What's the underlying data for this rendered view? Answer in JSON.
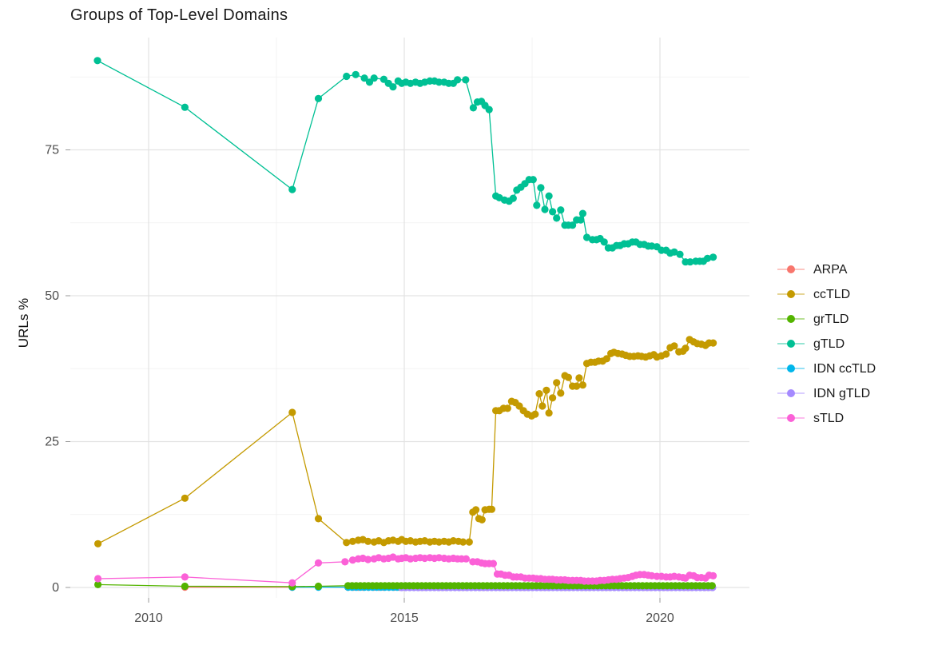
{
  "chart_data": {
    "type": "line",
    "title": "Groups of Top-Level Domains",
    "xlabel": "",
    "ylabel": "URLs %",
    "xlim": [
      2008.5,
      2021.7
    ],
    "ylim": [
      -1,
      94
    ],
    "x_ticks": [
      2010,
      2015,
      2020
    ],
    "x_minor": [
      2012.5,
      2017.5
    ],
    "y_ticks": [
      0,
      25,
      50,
      75
    ],
    "y_minor": [
      12.5,
      37.5,
      62.5,
      87.5
    ],
    "grid": true,
    "legend_position": "right",
    "legend": [
      {
        "label": "ARPA",
        "color": "#F8766D"
      },
      {
        "label": "ccTLD",
        "color": "#C49A00"
      },
      {
        "label": "grTLD",
        "color": "#53B400"
      },
      {
        "label": "gTLD",
        "color": "#00C094"
      },
      {
        "label": "IDN ccTLD",
        "color": "#00B6EB"
      },
      {
        "label": "IDN gTLD",
        "color": "#A58AFF"
      },
      {
        "label": "sTLD",
        "color": "#FB61D7"
      }
    ],
    "series": [
      {
        "name": "ARPA",
        "color": "#F8766D",
        "points": [
          [
            2010.71,
            0.05
          ],
          [
            2012.81,
            0.05
          ],
          [
            2013.32,
            0.1
          ]
        ],
        "flat": {
          "from": 2013.9,
          "to": 2021.05,
          "step": 0.1,
          "value": 0.05
        }
      },
      {
        "name": "IDN ccTLD",
        "color": "#00B6EB",
        "points": [
          [
            2012.81,
            0.05
          ],
          [
            2013.32,
            0.05
          ]
        ],
        "flat": {
          "from": 2013.9,
          "to": 2021.05,
          "step": 0.08,
          "value": 0.05
        }
      },
      {
        "name": "IDN gTLD",
        "color": "#A58AFF",
        "points": [],
        "flat": {
          "from": 2014.95,
          "to": 2021.05,
          "step": 0.08,
          "value": 0.0
        }
      },
      {
        "name": "grTLD",
        "color": "#53B400",
        "points": [
          [
            2009.01,
            0.5
          ],
          [
            2010.71,
            0.2
          ],
          [
            2012.81,
            0.15
          ],
          [
            2013.32,
            0.2
          ]
        ],
        "flat": {
          "from": 2013.9,
          "to": 2021.05,
          "step": 0.08,
          "value": 0.3
        }
      },
      {
        "name": "gTLD",
        "color": "#00C094",
        "points": [
          [
            2009.0,
            90.3
          ],
          [
            2010.71,
            82.3
          ],
          [
            2012.81,
            68.2
          ],
          [
            2013.32,
            83.8
          ],
          [
            2013.87,
            87.6
          ],
          [
            2014.05,
            87.9
          ],
          [
            2014.22,
            87.3
          ],
          [
            2014.32,
            86.6
          ],
          [
            2014.41,
            87.3
          ],
          [
            2014.6,
            87.1
          ],
          [
            2014.69,
            86.4
          ],
          [
            2014.78,
            85.8
          ],
          [
            2014.88,
            86.8
          ],
          [
            2014.95,
            86.4
          ],
          [
            2015.03,
            86.6
          ],
          [
            2015.12,
            86.4
          ],
          [
            2015.22,
            86.6
          ],
          [
            2015.31,
            86.4
          ],
          [
            2015.4,
            86.6
          ],
          [
            2015.5,
            86.8
          ],
          [
            2015.59,
            86.8
          ],
          [
            2015.68,
            86.6
          ],
          [
            2015.78,
            86.6
          ],
          [
            2015.87,
            86.4
          ],
          [
            2015.96,
            86.4
          ],
          [
            2016.04,
            87.0
          ],
          [
            2016.2,
            87.0
          ],
          [
            2016.35,
            82.2
          ],
          [
            2016.43,
            83.2
          ],
          [
            2016.51,
            83.3
          ],
          [
            2016.58,
            82.6
          ],
          [
            2016.66,
            81.9
          ],
          [
            2016.79,
            67.1
          ],
          [
            2016.86,
            66.8
          ],
          [
            2016.96,
            66.4
          ],
          [
            2017.05,
            66.2
          ],
          [
            2017.13,
            66.7
          ],
          [
            2017.2,
            68.1
          ],
          [
            2017.28,
            68.6
          ],
          [
            2017.36,
            69.2
          ],
          [
            2017.44,
            69.9
          ],
          [
            2017.52,
            69.9
          ],
          [
            2017.59,
            65.5
          ],
          [
            2017.67,
            68.5
          ],
          [
            2017.75,
            64.8
          ],
          [
            2017.83,
            67.1
          ],
          [
            2017.9,
            64.4
          ],
          [
            2017.98,
            63.3
          ],
          [
            2018.06,
            64.7
          ],
          [
            2018.14,
            62.1
          ],
          [
            2018.21,
            62.1
          ],
          [
            2018.29,
            62.1
          ],
          [
            2018.37,
            63.0
          ],
          [
            2018.45,
            63.0
          ],
          [
            2018.49,
            64.1
          ],
          [
            2018.57,
            60.0
          ],
          [
            2018.68,
            59.6
          ],
          [
            2018.76,
            59.6
          ],
          [
            2018.83,
            59.8
          ],
          [
            2018.91,
            59.2
          ],
          [
            2018.99,
            58.2
          ],
          [
            2019.07,
            58.2
          ],
          [
            2019.15,
            58.6
          ],
          [
            2019.22,
            58.6
          ],
          [
            2019.3,
            58.9
          ],
          [
            2019.38,
            58.9
          ],
          [
            2019.46,
            59.2
          ],
          [
            2019.53,
            59.2
          ],
          [
            2019.61,
            58.8
          ],
          [
            2019.69,
            58.8
          ],
          [
            2019.77,
            58.5
          ],
          [
            2019.84,
            58.5
          ],
          [
            2019.94,
            58.4
          ],
          [
            2020.03,
            57.8
          ],
          [
            2020.12,
            57.8
          ],
          [
            2020.2,
            57.3
          ],
          [
            2020.28,
            57.5
          ],
          [
            2020.39,
            57.1
          ],
          [
            2020.5,
            55.8
          ],
          [
            2020.59,
            55.8
          ],
          [
            2020.7,
            55.9
          ],
          [
            2020.78,
            55.9
          ],
          [
            2020.85,
            55.9
          ],
          [
            2020.93,
            56.4
          ],
          [
            2021.04,
            56.6
          ]
        ]
      },
      {
        "name": "ccTLD",
        "color": "#C49A00",
        "points": [
          [
            2009.01,
            7.5
          ],
          [
            2010.71,
            15.3
          ],
          [
            2012.81,
            30.0
          ],
          [
            2013.32,
            11.8
          ],
          [
            2013.87,
            7.7
          ],
          [
            2013.99,
            7.9
          ],
          [
            2014.1,
            8.1
          ],
          [
            2014.19,
            8.2
          ],
          [
            2014.29,
            7.9
          ],
          [
            2014.41,
            7.8
          ],
          [
            2014.5,
            8.0
          ],
          [
            2014.6,
            7.7
          ],
          [
            2014.69,
            8.0
          ],
          [
            2014.78,
            8.1
          ],
          [
            2014.88,
            7.9
          ],
          [
            2014.95,
            8.2
          ],
          [
            2015.03,
            7.9
          ],
          [
            2015.12,
            8.0
          ],
          [
            2015.22,
            7.8
          ],
          [
            2015.31,
            7.9
          ],
          [
            2015.4,
            8.0
          ],
          [
            2015.5,
            7.8
          ],
          [
            2015.59,
            7.9
          ],
          [
            2015.68,
            7.8
          ],
          [
            2015.78,
            7.9
          ],
          [
            2015.87,
            7.8
          ],
          [
            2015.96,
            8.0
          ],
          [
            2016.06,
            7.9
          ],
          [
            2016.15,
            7.8
          ],
          [
            2016.27,
            7.8
          ],
          [
            2016.34,
            12.9
          ],
          [
            2016.4,
            13.3
          ],
          [
            2016.46,
            11.8
          ],
          [
            2016.52,
            11.6
          ],
          [
            2016.58,
            13.3
          ],
          [
            2016.66,
            13.4
          ],
          [
            2016.71,
            13.4
          ],
          [
            2016.79,
            30.3
          ],
          [
            2016.86,
            30.3
          ],
          [
            2016.94,
            30.7
          ],
          [
            2017.02,
            30.7
          ],
          [
            2017.1,
            31.9
          ],
          [
            2017.17,
            31.7
          ],
          [
            2017.25,
            31.1
          ],
          [
            2017.33,
            30.3
          ],
          [
            2017.41,
            29.7
          ],
          [
            2017.49,
            29.4
          ],
          [
            2017.56,
            29.7
          ],
          [
            2017.64,
            33.2
          ],
          [
            2017.7,
            31.1
          ],
          [
            2017.78,
            33.8
          ],
          [
            2017.83,
            29.9
          ],
          [
            2017.9,
            32.5
          ],
          [
            2017.98,
            35.1
          ],
          [
            2018.06,
            33.3
          ],
          [
            2018.14,
            36.3
          ],
          [
            2018.21,
            36.0
          ],
          [
            2018.29,
            34.5
          ],
          [
            2018.37,
            34.5
          ],
          [
            2018.42,
            35.9
          ],
          [
            2018.49,
            34.7
          ],
          [
            2018.57,
            38.4
          ],
          [
            2018.65,
            38.6
          ],
          [
            2018.73,
            38.6
          ],
          [
            2018.8,
            38.8
          ],
          [
            2018.88,
            38.8
          ],
          [
            2018.96,
            39.2
          ],
          [
            2019.04,
            40.1
          ],
          [
            2019.1,
            40.3
          ],
          [
            2019.18,
            40.1
          ],
          [
            2019.26,
            40.0
          ],
          [
            2019.33,
            39.8
          ],
          [
            2019.41,
            39.6
          ],
          [
            2019.49,
            39.6
          ],
          [
            2019.57,
            39.7
          ],
          [
            2019.64,
            39.6
          ],
          [
            2019.72,
            39.5
          ],
          [
            2019.8,
            39.7
          ],
          [
            2019.88,
            39.9
          ],
          [
            2019.94,
            39.5
          ],
          [
            2020.03,
            39.7
          ],
          [
            2020.12,
            40.0
          ],
          [
            2020.2,
            41.1
          ],
          [
            2020.28,
            41.4
          ],
          [
            2020.37,
            40.4
          ],
          [
            2020.45,
            40.5
          ],
          [
            2020.5,
            41.0
          ],
          [
            2020.58,
            42.5
          ],
          [
            2020.66,
            42.1
          ],
          [
            2020.73,
            41.8
          ],
          [
            2020.81,
            41.7
          ],
          [
            2020.89,
            41.5
          ],
          [
            2020.96,
            41.9
          ],
          [
            2021.04,
            41.9
          ]
        ]
      },
      {
        "name": "sTLD",
        "color": "#FB61D7",
        "points": [
          [
            2009.01,
            1.5
          ],
          [
            2010.71,
            1.8
          ],
          [
            2012.81,
            0.8
          ],
          [
            2013.32,
            4.2
          ],
          [
            2013.84,
            4.4
          ],
          [
            2013.99,
            4.7
          ],
          [
            2014.1,
            4.9
          ],
          [
            2014.19,
            5.0
          ],
          [
            2014.29,
            4.8
          ],
          [
            2014.41,
            4.9
          ],
          [
            2014.5,
            5.1
          ],
          [
            2014.6,
            4.9
          ],
          [
            2014.69,
            5.0
          ],
          [
            2014.78,
            5.2
          ],
          [
            2014.88,
            4.9
          ],
          [
            2014.95,
            5.0
          ],
          [
            2015.03,
            5.1
          ],
          [
            2015.12,
            4.9
          ],
          [
            2015.22,
            5.0
          ],
          [
            2015.31,
            5.1
          ],
          [
            2015.4,
            5.0
          ],
          [
            2015.5,
            5.1
          ],
          [
            2015.59,
            5.0
          ],
          [
            2015.68,
            5.1
          ],
          [
            2015.78,
            5.0
          ],
          [
            2015.87,
            4.9
          ],
          [
            2015.96,
            5.0
          ],
          [
            2016.04,
            4.9
          ],
          [
            2016.12,
            4.9
          ],
          [
            2016.21,
            4.9
          ],
          [
            2016.34,
            4.4
          ],
          [
            2016.43,
            4.4
          ],
          [
            2016.51,
            4.2
          ],
          [
            2016.58,
            4.1
          ],
          [
            2016.66,
            4.1
          ],
          [
            2016.74,
            4.1
          ],
          [
            2016.82,
            2.3
          ],
          [
            2016.89,
            2.3
          ],
          [
            2016.97,
            2.1
          ],
          [
            2017.05,
            2.1
          ],
          [
            2017.13,
            1.8
          ],
          [
            2017.2,
            1.8
          ],
          [
            2017.28,
            1.8
          ],
          [
            2017.36,
            1.6
          ],
          [
            2017.44,
            1.6
          ],
          [
            2017.52,
            1.6
          ],
          [
            2017.59,
            1.5
          ],
          [
            2017.67,
            1.5
          ],
          [
            2017.75,
            1.4
          ],
          [
            2017.83,
            1.4
          ],
          [
            2017.9,
            1.4
          ],
          [
            2017.98,
            1.3
          ],
          [
            2018.06,
            1.3
          ],
          [
            2018.14,
            1.3
          ],
          [
            2018.21,
            1.2
          ],
          [
            2018.29,
            1.2
          ],
          [
            2018.37,
            1.2
          ],
          [
            2018.45,
            1.2
          ],
          [
            2018.52,
            1.1
          ],
          [
            2018.6,
            1.1
          ],
          [
            2018.68,
            1.1
          ],
          [
            2018.76,
            1.1
          ],
          [
            2018.83,
            1.2
          ],
          [
            2018.91,
            1.2
          ],
          [
            2018.99,
            1.3
          ],
          [
            2019.07,
            1.4
          ],
          [
            2019.15,
            1.4
          ],
          [
            2019.22,
            1.5
          ],
          [
            2019.3,
            1.6
          ],
          [
            2019.38,
            1.7
          ],
          [
            2019.46,
            1.9
          ],
          [
            2019.53,
            2.1
          ],
          [
            2019.61,
            2.2
          ],
          [
            2019.69,
            2.2
          ],
          [
            2019.77,
            2.1
          ],
          [
            2019.84,
            2.0
          ],
          [
            2019.94,
            1.9
          ],
          [
            2020.03,
            1.9
          ],
          [
            2020.12,
            1.8
          ],
          [
            2020.2,
            1.8
          ],
          [
            2020.28,
            1.9
          ],
          [
            2020.37,
            1.8
          ],
          [
            2020.45,
            1.7
          ],
          [
            2020.5,
            1.6
          ],
          [
            2020.58,
            2.1
          ],
          [
            2020.66,
            2.0
          ],
          [
            2020.73,
            1.7
          ],
          [
            2020.81,
            1.7
          ],
          [
            2020.89,
            1.6
          ],
          [
            2020.96,
            2.1
          ],
          [
            2021.04,
            2.0
          ]
        ]
      }
    ],
    "style": {
      "background": "#ffffff",
      "grid_major_color": "#e3e3e3",
      "grid_minor_color": "#f0f0f0",
      "tick_label_color": "#4d4d4d",
      "title_color": "#1a1a1a",
      "point_radius": 4.6,
      "line_width": 1.3
    }
  }
}
